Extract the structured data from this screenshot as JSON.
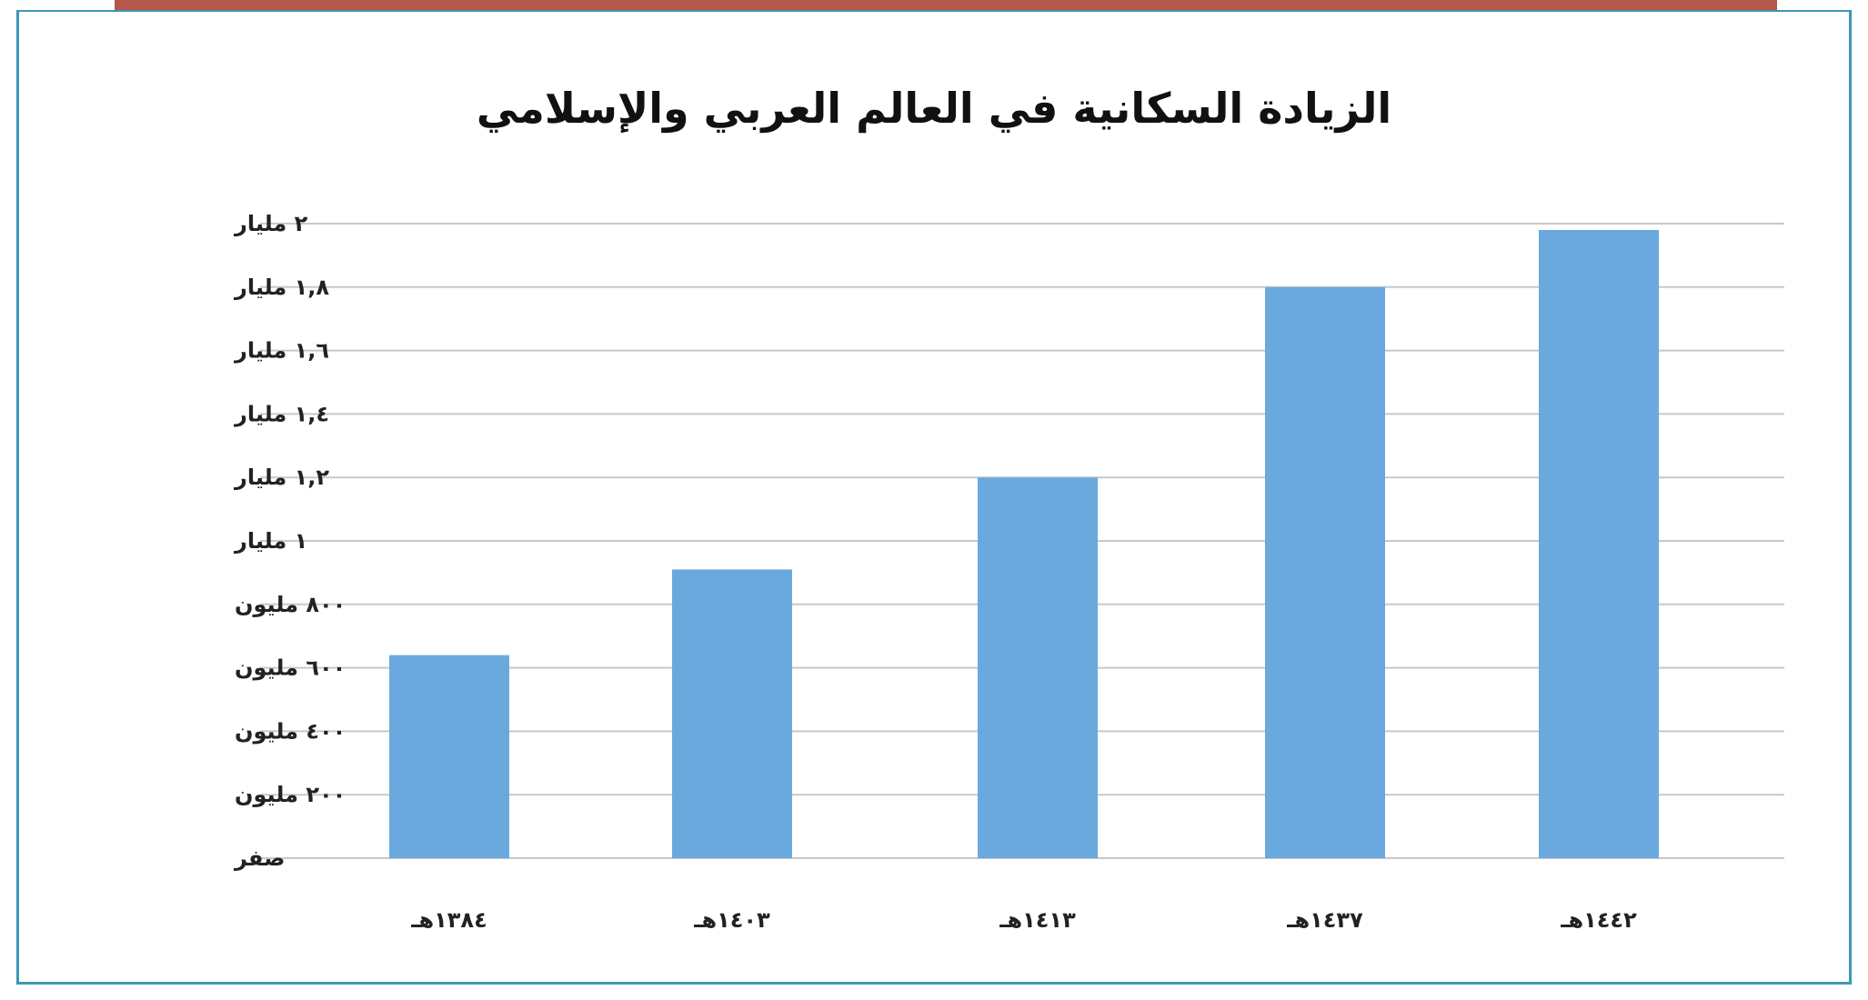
{
  "colors": {
    "frame": "#3d97b3",
    "top_band": "#b5574b",
    "bar": "#6aa9de",
    "grid": "#c8c8c8",
    "text": "#222222"
  },
  "chart_data": {
    "type": "bar",
    "title": "الزيادة السكانية في العالم العربي والإسلامي",
    "xlabel": "",
    "ylabel": "",
    "categories": [
      "١٣٨٤هـ",
      "١٤٠٣هـ",
      "١٤١٣هـ",
      "١٤٣٧هـ",
      "١٤٤٢هـ"
    ],
    "values": [
      640000000,
      910000000,
      1200000000,
      1800000000,
      1980000000
    ],
    "ylim": [
      0,
      2000000000
    ],
    "ytick_values": [
      0,
      200000000,
      400000000,
      600000000,
      800000000,
      1000000000,
      1200000000,
      1400000000,
      1600000000,
      1800000000,
      2000000000
    ],
    "ytick_labels": [
      "صفر",
      "٢٠٠ مليون",
      "٤٠٠ مليون",
      "٦٠٠ مليون",
      "٨٠٠ مليون",
      "١ مليار",
      "١,٢ مليار",
      "١,٤ مليار",
      "١,٦ مليار",
      "١,٨ مليار",
      "٢ مليار"
    ],
    "grid": true,
    "legend": "none"
  }
}
